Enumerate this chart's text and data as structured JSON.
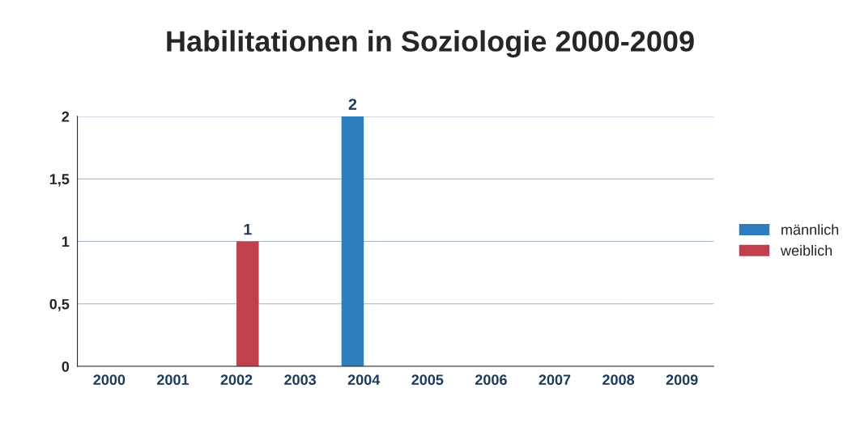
{
  "chart_data": {
    "type": "bar",
    "title": "Habilitationen in Soziologie 2000-2009",
    "categories": [
      "2000",
      "2001",
      "2002",
      "2003",
      "2004",
      "2005",
      "2006",
      "2007",
      "2008",
      "2009"
    ],
    "series": [
      {
        "name": "männlich",
        "color": "#2e7dbf",
        "values": [
          null,
          null,
          null,
          null,
          2,
          null,
          null,
          null,
          null,
          null
        ],
        "value_labels": [
          null,
          null,
          null,
          null,
          "2",
          null,
          null,
          null,
          null,
          null
        ]
      },
      {
        "name": "weiblich",
        "color": "#c0404c",
        "values": [
          null,
          null,
          1,
          null,
          null,
          null,
          null,
          null,
          null,
          null
        ],
        "value_labels": [
          null,
          null,
          "1",
          null,
          null,
          null,
          null,
          null,
          null,
          null
        ]
      }
    ],
    "ylim": [
      0,
      2
    ],
    "yticks": [
      0,
      {
        "value": 0.5,
        "label": "0,5"
      },
      1,
      {
        "value": 1.5,
        "label": "1,5"
      },
      2
    ],
    "grid": "y",
    "legend": "right"
  }
}
